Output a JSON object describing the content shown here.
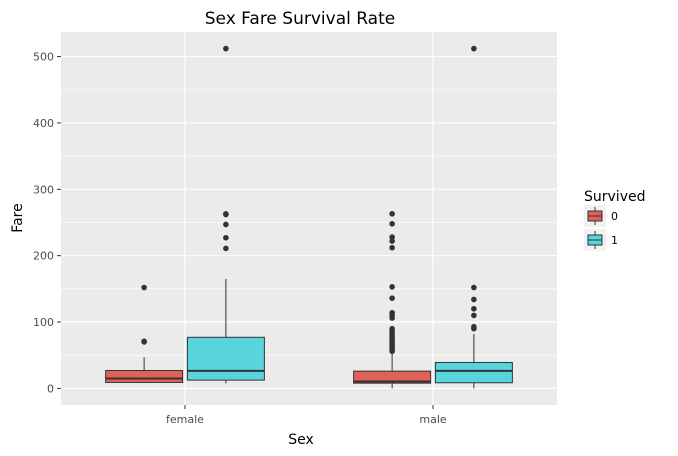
{
  "chart_data": {
    "type": "boxplot",
    "title": "Sex Fare Survival Rate",
    "xlabel": "Sex",
    "ylabel": "Fare",
    "categories": [
      "female",
      "male"
    ],
    "ylim": [
      -25,
      537
    ],
    "yticks": [
      0,
      100,
      200,
      300,
      400,
      500
    ],
    "grid": true,
    "legend": {
      "title": "Survived",
      "position": "right",
      "entries": [
        {
          "label": "0",
          "color": "#E0605A"
        },
        {
          "label": "1",
          "color": "#58D5DC"
        }
      ]
    },
    "series": [
      {
        "name": "0",
        "color": "#E0605A",
        "boxes": [
          {
            "category": "female",
            "lower": 8,
            "q1": 9,
            "median": 15,
            "q3": 27,
            "upper": 47,
            "outliers": [
              70,
              71,
              152
            ]
          },
          {
            "category": "male",
            "lower": 0,
            "q1": 7.9,
            "median": 10.5,
            "q3": 26,
            "upper": 52,
            "outliers": [
              56,
              59,
              61,
              64,
              67,
              70,
              73,
              77,
              79,
              82,
              86,
              90,
              106,
              110,
              114,
              136,
              153,
              212,
              222,
              228,
              248,
              263
            ]
          }
        ]
      },
      {
        "name": "1",
        "color": "#58D5DC",
        "boxes": [
          {
            "category": "female",
            "lower": 7.5,
            "q1": 12.5,
            "median": 26.5,
            "q3": 77,
            "upper": 165,
            "outliers": [
              211,
              227,
              247,
              262,
              263,
              512
            ]
          },
          {
            "category": "male",
            "lower": 0,
            "q1": 8.5,
            "median": 26.5,
            "q3": 39,
            "upper": 82,
            "outliers": [
              90,
              93,
              110,
              120,
              134,
              152,
              512
            ]
          }
        ]
      }
    ]
  }
}
